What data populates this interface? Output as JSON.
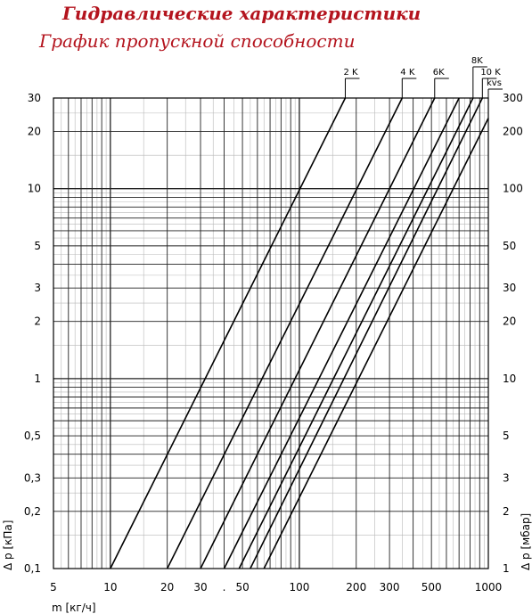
{
  "header": {
    "title": "Гидравлические характеристики",
    "subtitle": "График пропускной способности"
  },
  "chart_data": {
    "type": "line",
    "x_scale": "log",
    "y_scale": "log",
    "xlim": [
      5,
      1000
    ],
    "ylim": [
      0.1,
      30
    ],
    "ylim_right": [
      1,
      300
    ],
    "grid": true,
    "xlabel": "m [кг/ч]",
    "ylabel": "Δ p [кПа]",
    "ylabel_right": "Δ p [мбар]",
    "x_ticks": [
      {
        "v": 5,
        "t": "5"
      },
      {
        "v": 10,
        "t": "10"
      },
      {
        "v": 20,
        "t": "20"
      },
      {
        "v": 30,
        "t": "30"
      },
      {
        "v": 40,
        "t": "."
      },
      {
        "v": 50,
        "t": "50"
      },
      {
        "v": 100,
        "t": "100"
      },
      {
        "v": 200,
        "t": "200"
      },
      {
        "v": 300,
        "t": "300"
      },
      {
        "v": 500,
        "t": "500"
      },
      {
        "v": 1000,
        "t": "1000"
      }
    ],
    "y_ticks_left": [
      {
        "v": 0.1,
        "t": "0,1"
      },
      {
        "v": 0.2,
        "t": "0,2"
      },
      {
        "v": 0.3,
        "t": "0,3"
      },
      {
        "v": 0.5,
        "t": "0,5"
      },
      {
        "v": 1,
        "t": "1"
      },
      {
        "v": 2,
        "t": "2"
      },
      {
        "v": 3,
        "t": "3"
      },
      {
        "v": 5,
        "t": "5"
      },
      {
        "v": 10,
        "t": "10"
      },
      {
        "v": 20,
        "t": "20"
      },
      {
        "v": 30,
        "t": "30"
      }
    ],
    "y_ticks_right": [
      {
        "v": 1,
        "t": "1"
      },
      {
        "v": 2,
        "t": "2"
      },
      {
        "v": 3,
        "t": "3"
      },
      {
        "v": 5,
        "t": "5"
      },
      {
        "v": 10,
        "t": "10"
      },
      {
        "v": 20,
        "t": "20"
      },
      {
        "v": 30,
        "t": "30"
      },
      {
        "v": 50,
        "t": "50"
      },
      {
        "v": 100,
        "t": "100"
      },
      {
        "v": 200,
        "t": "200"
      },
      {
        "v": 300,
        "t": "300"
      }
    ],
    "series": [
      {
        "name": "2 K",
        "points": [
          [
            10,
            0.1
          ],
          [
            175,
            30
          ]
        ]
      },
      {
        "name": "4 K",
        "points": [
          [
            20,
            0.1
          ],
          [
            350,
            30
          ]
        ]
      },
      {
        "name": "6K",
        "points": [
          [
            30,
            0.1
          ],
          [
            520,
            30
          ]
        ]
      },
      {
        "name": "",
        "points": [
          [
            40,
            0.1
          ],
          [
            700,
            30
          ]
        ]
      },
      {
        "name": "8K",
        "points": [
          [
            48,
            0.1
          ],
          [
            830,
            30
          ]
        ]
      },
      {
        "name": "10 K",
        "points": [
          [
            55,
            0.1
          ],
          [
            930,
            30
          ]
        ]
      },
      {
        "name": "kvs",
        "points": [
          [
            65,
            0.1
          ],
          [
            1000,
            23.5
          ]
        ]
      }
    ]
  }
}
